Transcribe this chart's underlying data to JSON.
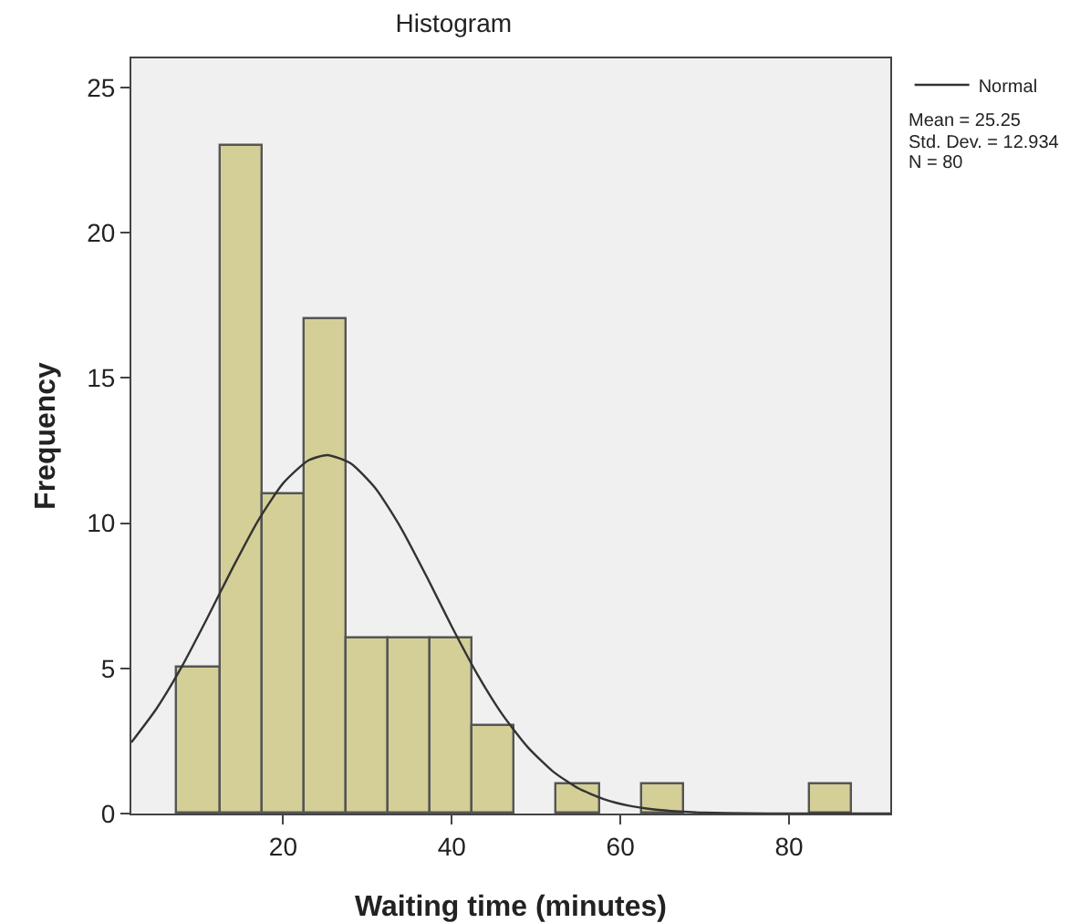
{
  "chart_data": {
    "type": "histogram",
    "title": "Histogram",
    "xlabel": "Waiting time (minutes)",
    "ylabel": "Frequency",
    "series": [
      {
        "color": "#d3cf97",
        "bins": [
          7.5,
          12.5,
          17.5,
          22.5,
          27.5,
          32.5,
          37.5,
          42.5,
          47.5,
          52.5,
          57.5,
          62.5,
          67.5,
          72.5,
          77.5,
          82.5,
          87.5
        ],
        "values": [
          5,
          23,
          11,
          17,
          6,
          6,
          6,
          3,
          0,
          1,
          0,
          1,
          0,
          0,
          0,
          1
        ]
      },
      {
        "type": "line",
        "name": "Normal",
        "color": "#333333",
        "x": [
          2,
          5,
          8,
          11,
          14,
          17,
          20,
          23,
          25.25,
          28,
          31,
          34,
          37,
          40,
          43,
          46,
          49,
          52,
          55,
          58,
          61,
          64,
          67,
          70,
          75,
          80,
          92
        ],
        "values": [
          2.45,
          3.62,
          5.07,
          6.73,
          8.45,
          10.07,
          11.37,
          12.16,
          12.34,
          12.06,
          11.18,
          9.82,
          8.17,
          6.44,
          4.81,
          3.41,
          2.29,
          1.45,
          0.87,
          0.5,
          0.27,
          0.14,
          0.07,
          0.03,
          0.01,
          0,
          0
        ]
      }
    ],
    "annotations": [
      "Mean = 25.25",
      "Std. Dev. = 12.934",
      "N = 80"
    ],
    "xlim": [
      2,
      92
    ],
    "xticks": [
      20,
      40,
      60,
      80
    ],
    "ylim": [
      0,
      26
    ],
    "yticks": [
      0,
      5,
      10,
      15,
      20,
      25
    ],
    "grid": false,
    "legend": "top right",
    "line_style": "solid",
    "marker": "none"
  }
}
